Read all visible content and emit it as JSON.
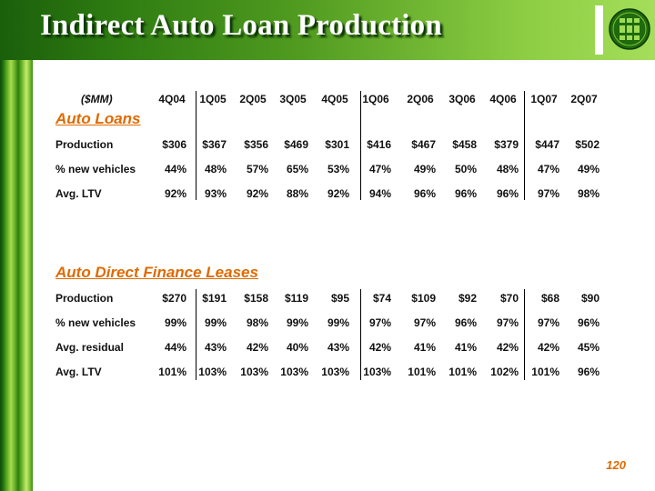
{
  "slide": {
    "title": "Indirect Auto Loan Production",
    "page_number": "120",
    "accent_color": "#e06a00",
    "brand_green": "#2f7c12"
  },
  "table": {
    "units": "($MM)",
    "columns": [
      "4Q04",
      "1Q05",
      "2Q05",
      "3Q05",
      "4Q05",
      "1Q06",
      "2Q06",
      "3Q06",
      "4Q06",
      "1Q07",
      "2Q07"
    ]
  },
  "auto_loans": {
    "title": "Auto Loans",
    "rows": [
      {
        "label": "Production",
        "values": [
          "$306",
          "$367",
          "$356",
          "$469",
          "$301",
          "$416",
          "$467",
          "$458",
          "$379",
          "$447",
          "$502"
        ]
      },
      {
        "label": "% new vehicles",
        "values": [
          "44%",
          "48%",
          "57%",
          "65%",
          "53%",
          "47%",
          "49%",
          "50%",
          "48%",
          "47%",
          "49%"
        ]
      },
      {
        "label": "Avg. LTV",
        "values": [
          "92%",
          "93%",
          "92%",
          "88%",
          "92%",
          "94%",
          "96%",
          "96%",
          "96%",
          "97%",
          "98%"
        ]
      }
    ]
  },
  "leases": {
    "title": "Auto Direct Finance Leases",
    "rows": [
      {
        "label": "Production",
        "values": [
          "$270",
          "$191",
          "$158",
          "$119",
          "$95",
          "$74",
          "$109",
          "$92",
          "$70",
          "$68",
          "$90"
        ]
      },
      {
        "label": "% new vehicles",
        "values": [
          "99%",
          "99%",
          "98%",
          "99%",
          "99%",
          "97%",
          "97%",
          "96%",
          "97%",
          "97%",
          "96%"
        ]
      },
      {
        "label": "Avg. residual",
        "values": [
          "44%",
          "43%",
          "42%",
          "40%",
          "43%",
          "42%",
          "41%",
          "41%",
          "42%",
          "42%",
          "45%"
        ]
      },
      {
        "label": "Avg. LTV",
        "values": [
          "101%",
          "103%",
          "103%",
          "103%",
          "103%",
          "103%",
          "101%",
          "101%",
          "102%",
          "101%",
          "96%"
        ]
      }
    ]
  }
}
